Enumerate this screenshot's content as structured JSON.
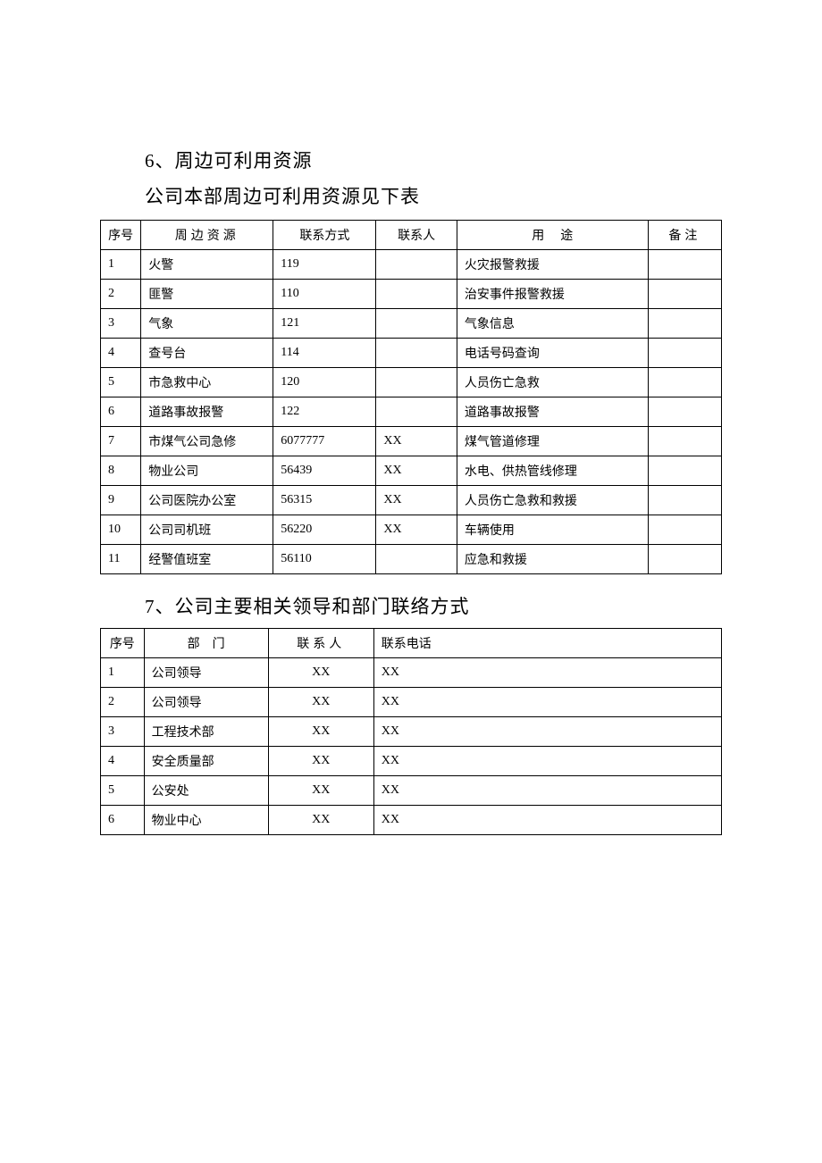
{
  "section6": {
    "heading": "6、周边可利用资源",
    "subheading": "公司本部周边可利用资源见下表",
    "table": {
      "headers": [
        "序号",
        "周边资源",
        "联系方式",
        "联系人",
        "用途",
        "备注"
      ],
      "rows": [
        {
          "no": "1",
          "resource": "火警",
          "contact": "119",
          "person": "",
          "purpose": "火灾报警救援",
          "note": ""
        },
        {
          "no": "2",
          "resource": "匪警",
          "contact": "110",
          "person": "",
          "purpose": "治安事件报警救援",
          "note": ""
        },
        {
          "no": "3",
          "resource": "气象",
          "contact": "121",
          "person": "",
          "purpose": "气象信息",
          "note": ""
        },
        {
          "no": "4",
          "resource": "查号台",
          "contact": "114",
          "person": "",
          "purpose": "电话号码查询",
          "note": ""
        },
        {
          "no": "5",
          "resource": "市急救中心",
          "contact": "120",
          "person": "",
          "purpose": "人员伤亡急救",
          "note": ""
        },
        {
          "no": "6",
          "resource": "道路事故报警",
          "contact": "122",
          "person": "",
          "purpose": "道路事故报警",
          "note": ""
        },
        {
          "no": "7",
          "resource": "市煤气公司急修",
          "contact": "6077777",
          "person": "XX",
          "purpose": "煤气管道修理",
          "note": ""
        },
        {
          "no": "8",
          "resource": "物业公司",
          "contact": "56439",
          "person": "XX",
          "purpose": "水电、供热管线修理",
          "note": ""
        },
        {
          "no": "9",
          "resource": "公司医院办公室",
          "contact": "56315",
          "person": "XX",
          "purpose": "人员伤亡急救和救援",
          "note": ""
        },
        {
          "no": "10",
          "resource": "公司司机班",
          "contact": "56220",
          "person": "XX",
          "purpose": "车辆使用",
          "note": ""
        },
        {
          "no": "11",
          "resource": "经警值班室",
          "contact": "56110",
          "person": "",
          "purpose": "应急和救援",
          "note": ""
        }
      ]
    }
  },
  "section7": {
    "heading": "7、公司主要相关领导和部门联络方式",
    "table": {
      "headers": [
        "序号",
        "部门",
        "联系人",
        "联系电话"
      ],
      "rows": [
        {
          "no": "1",
          "dept": "公司领导",
          "person": "XX",
          "phone": "XX"
        },
        {
          "no": "2",
          "dept": "公司领导",
          "person": "XX",
          "phone": "XX"
        },
        {
          "no": "3",
          "dept": "工程技术部",
          "person": "XX",
          "phone": "XX"
        },
        {
          "no": "4",
          "dept": "安全质量部",
          "person": "XX",
          "phone": "XX"
        },
        {
          "no": "5",
          "dept": "公安处",
          "person": "XX",
          "phone": "XX"
        },
        {
          "no": "6",
          "dept": "物业中心",
          "person": "XX",
          "phone": "XX"
        }
      ]
    }
  }
}
